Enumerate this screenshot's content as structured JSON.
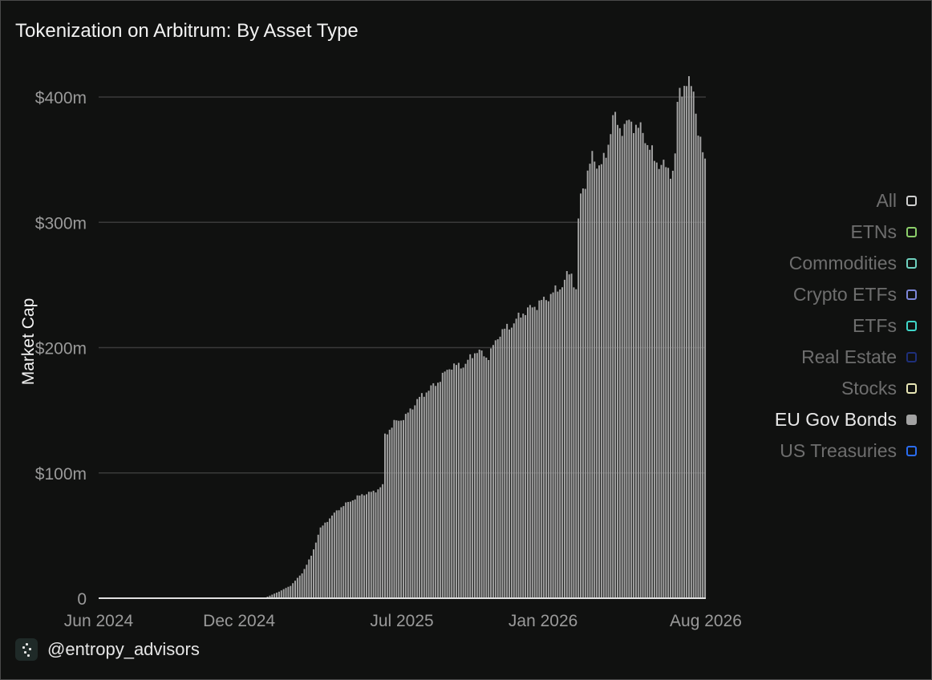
{
  "title": "Tokenization on Arbitrum: By Asset Type",
  "footer": {
    "handle": "@entropy_advisors",
    "logo_icon": "entropy-logo-icon"
  },
  "legend": [
    {
      "label": "All",
      "color": "#d0d0d0",
      "active": false
    },
    {
      "label": "ETNs",
      "color": "#8ccf6a",
      "active": false
    },
    {
      "label": "Commodities",
      "color": "#6fd1bf",
      "active": false
    },
    {
      "label": "Crypto ETFs",
      "color": "#7d86d9",
      "active": false
    },
    {
      "label": "ETFs",
      "color": "#3fd6c8",
      "active": false
    },
    {
      "label": "Real Estate",
      "color": "#1e2f7a",
      "active": false
    },
    {
      "label": "Stocks",
      "color": "#e8e6b5",
      "active": false
    },
    {
      "label": "EU Gov Bonds",
      "color": "#a3a3a3",
      "active": true
    },
    {
      "label": "US Treasuries",
      "color": "#2a6cf0",
      "active": false
    }
  ],
  "chart_data": {
    "type": "bar",
    "title": "Tokenization on Arbitrum: By Asset Type",
    "ylabel": "Market Cap",
    "xlabel": "",
    "ylim": [
      0,
      400
    ],
    "x_range": [
      "2024-06-01",
      "2026-08-01"
    ],
    "y_ticks": [
      {
        "value": 0,
        "label": "0"
      },
      {
        "value": 100,
        "label": "$100m"
      },
      {
        "value": 200,
        "label": "$200m"
      },
      {
        "value": 300,
        "label": "$300m"
      },
      {
        "value": 400,
        "label": "$400m"
      }
    ],
    "x_ticks": [
      {
        "date": "2024-06-01",
        "label": "Jun 2024"
      },
      {
        "date": "2024-12-01",
        "label": "Dec 2024"
      },
      {
        "date": "2025-07-01",
        "label": "Jul 2025"
      },
      {
        "date": "2026-01-01",
        "label": "Jan 2026"
      },
      {
        "date": "2026-08-01",
        "label": "Aug 2026"
      }
    ],
    "grid": true,
    "legend_position": "right",
    "series": [
      {
        "name": "EU Gov Bonds",
        "color": "#a3a3a3",
        "points": [
          [
            "2024-06-01",
            0
          ],
          [
            "2024-12-31",
            0
          ],
          [
            "2025-01-05",
            1
          ],
          [
            "2025-01-20",
            5
          ],
          [
            "2025-02-05",
            10
          ],
          [
            "2025-02-20",
            20
          ],
          [
            "2025-03-05",
            35
          ],
          [
            "2025-03-15",
            55
          ],
          [
            "2025-03-25",
            62
          ],
          [
            "2025-04-10",
            72
          ],
          [
            "2025-04-25",
            78
          ],
          [
            "2025-05-10",
            83
          ],
          [
            "2025-05-25",
            85
          ],
          [
            "2025-06-05",
            90
          ],
          [
            "2025-06-08",
            130
          ],
          [
            "2025-06-20",
            140
          ],
          [
            "2025-07-05",
            145
          ],
          [
            "2025-07-20",
            158
          ],
          [
            "2025-08-01",
            165
          ],
          [
            "2025-08-15",
            172
          ],
          [
            "2025-09-01",
            185
          ],
          [
            "2025-09-20",
            186
          ],
          [
            "2025-10-05",
            198
          ],
          [
            "2025-10-20",
            192
          ],
          [
            "2025-11-05",
            212
          ],
          [
            "2025-11-20",
            218
          ],
          [
            "2025-12-05",
            228
          ],
          [
            "2025-12-25",
            235
          ],
          [
            "2026-01-10",
            242
          ],
          [
            "2026-01-25",
            250
          ],
          [
            "2026-02-05",
            262
          ],
          [
            "2026-02-12",
            245
          ],
          [
            "2026-02-16",
            318
          ],
          [
            "2026-02-25",
            335
          ],
          [
            "2026-03-05",
            352
          ],
          [
            "2026-03-15",
            345
          ],
          [
            "2026-03-22",
            350
          ],
          [
            "2026-04-01",
            385
          ],
          [
            "2026-04-10",
            375
          ],
          [
            "2026-04-25",
            380
          ],
          [
            "2026-05-10",
            372
          ],
          [
            "2026-05-25",
            350
          ],
          [
            "2026-06-10",
            343
          ],
          [
            "2026-06-20",
            340
          ],
          [
            "2026-06-25",
            405
          ],
          [
            "2026-07-05",
            410
          ],
          [
            "2026-07-15",
            408
          ],
          [
            "2026-07-22",
            365
          ],
          [
            "2026-08-01",
            347
          ]
        ]
      }
    ]
  }
}
